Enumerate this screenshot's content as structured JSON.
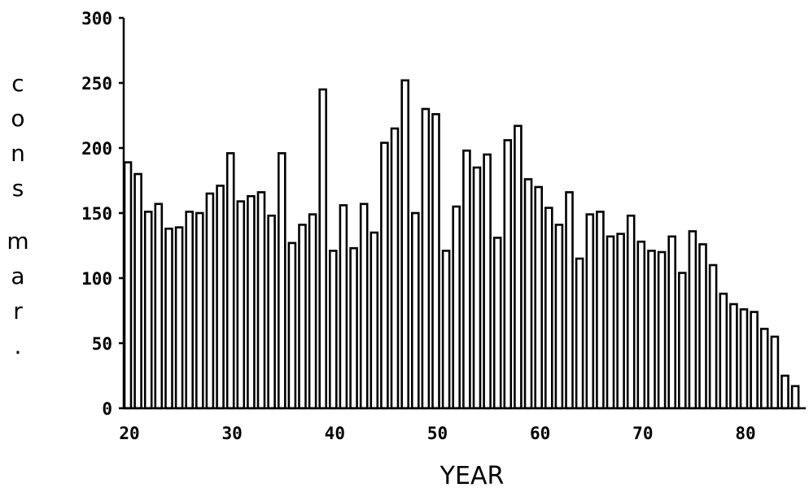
{
  "chart_data": {
    "type": "bar",
    "title": "",
    "xlabel": "YEAR",
    "ylabel": "cons mar.",
    "xlim": [
      20,
      85
    ],
    "ylim": [
      0,
      300
    ],
    "grid": false,
    "x_ticks": [
      "20",
      "30",
      "40",
      "50",
      "60",
      "70",
      "80"
    ],
    "y_ticks": [
      "0",
      "50",
      "100",
      "150",
      "200",
      "250",
      "300"
    ],
    "x": [
      20,
      21,
      22,
      23,
      24,
      25,
      26,
      27,
      28,
      29,
      30,
      31,
      32,
      33,
      34,
      35,
      36,
      37,
      38,
      39,
      40,
      41,
      42,
      43,
      44,
      45,
      46,
      47,
      48,
      49,
      50,
      51,
      52,
      53,
      54,
      55,
      56,
      57,
      58,
      59,
      60,
      61,
      62,
      63,
      64,
      65,
      66,
      67,
      68,
      69,
      70,
      71,
      72,
      73,
      74,
      75,
      76,
      77,
      78,
      79,
      80,
      81,
      82,
      83,
      84,
      85
    ],
    "values": [
      189,
      180,
      151,
      157,
      138,
      139,
      151,
      150,
      165,
      171,
      196,
      159,
      163,
      166,
      148,
      196,
      127,
      141,
      149,
      245,
      121,
      156,
      123,
      157,
      135,
      204,
      215,
      252,
      150,
      230,
      226,
      121,
      155,
      198,
      185,
      195,
      131,
      206,
      217,
      176,
      170,
      154,
      141,
      166,
      115,
      149,
      151,
      132,
      134,
      148,
      128,
      121,
      120,
      132,
      104,
      136,
      126,
      110,
      88,
      80,
      76,
      74,
      61,
      55,
      25,
      17
    ],
    "color": "#000000"
  }
}
